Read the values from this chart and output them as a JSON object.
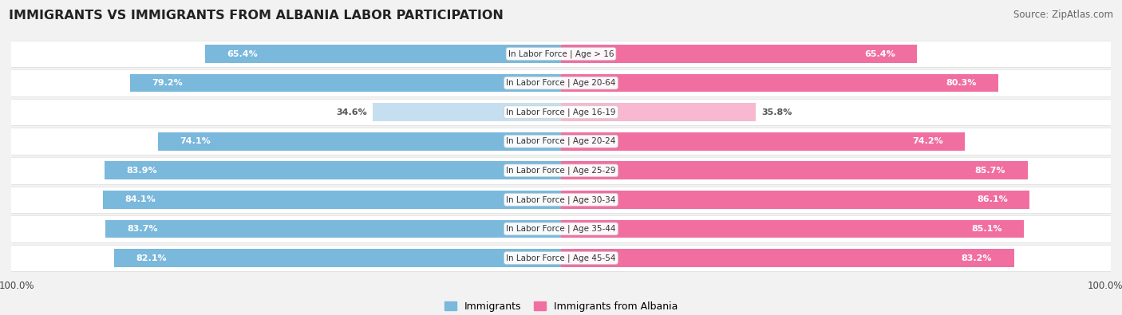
{
  "title": "IMMIGRANTS VS IMMIGRANTS FROM ALBANIA LABOR PARTICIPATION",
  "source": "Source: ZipAtlas.com",
  "categories": [
    "In Labor Force | Age > 16",
    "In Labor Force | Age 20-64",
    "In Labor Force | Age 16-19",
    "In Labor Force | Age 20-24",
    "In Labor Force | Age 25-29",
    "In Labor Force | Age 30-34",
    "In Labor Force | Age 35-44",
    "In Labor Force | Age 45-54"
  ],
  "immigrants_values": [
    65.4,
    79.2,
    34.6,
    74.1,
    83.9,
    84.1,
    83.7,
    82.1
  ],
  "albania_values": [
    65.4,
    80.3,
    35.8,
    74.2,
    85.7,
    86.1,
    85.1,
    83.2
  ],
  "immigrant_color": "#7ab8dc",
  "albania_color": "#f06fa0",
  "immigrant_color_light": "#c5dff0",
  "albania_color_light": "#f7b8d0",
  "bg_color": "#f2f2f2",
  "title_color": "#222222",
  "max_val": 100.0,
  "bar_height": 0.62,
  "legend_immigrant": "Immigrants",
  "legend_albania": "Immigrants from Albania"
}
